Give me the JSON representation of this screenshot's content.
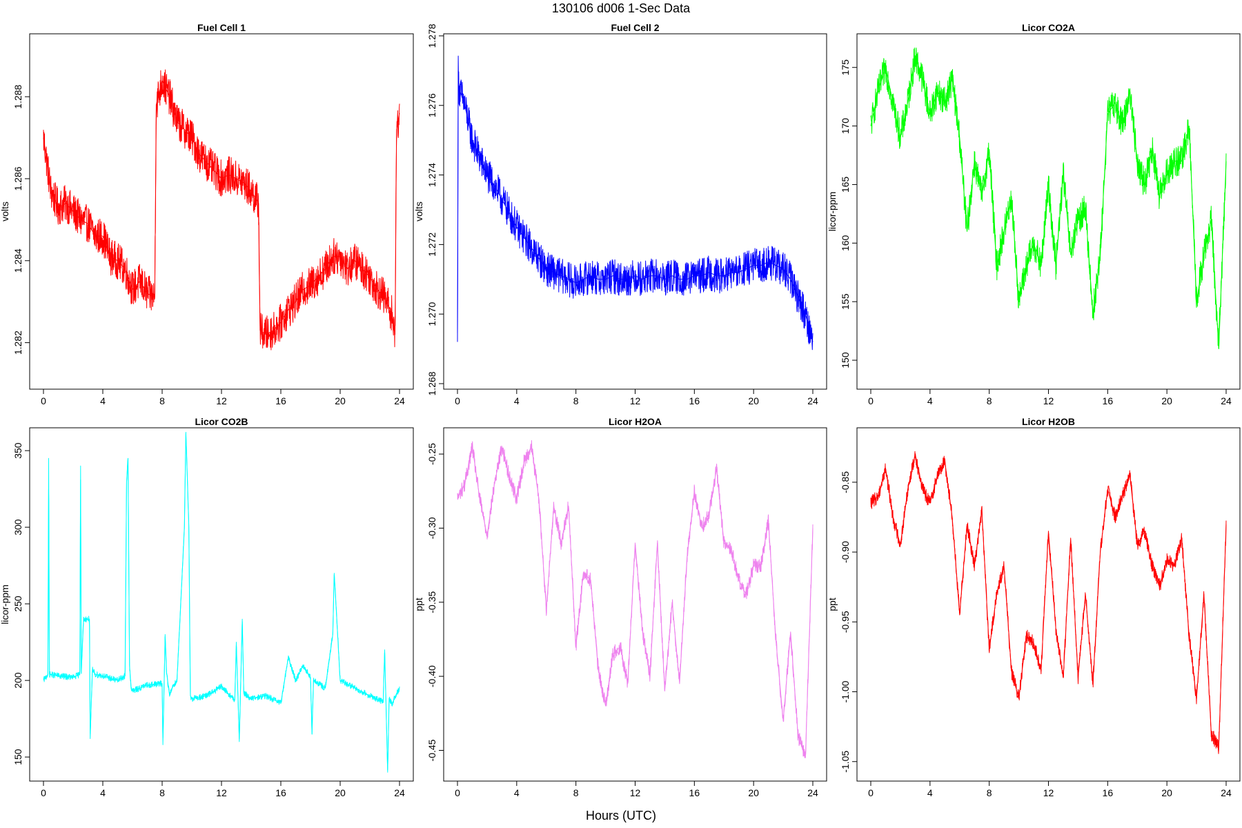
{
  "figure": {
    "title": "130106   d006   1-Sec Data",
    "xlabel": "Hours (UTC)"
  },
  "chart_data": [
    {
      "type": "line",
      "title": "Fuel Cell 1",
      "xlabel": "",
      "ylabel": "volts",
      "color": "#ff0000",
      "xlim": [
        0,
        24
      ],
      "ylim": [
        1.281,
        1.2894
      ],
      "xticks": [
        "0",
        "4",
        "8",
        "12",
        "16",
        "20",
        "24"
      ],
      "yticks": [
        "1.282",
        "1.284",
        "1.286",
        "1.288"
      ],
      "series": [
        {
          "x": [
            0,
            0.5,
            1,
            1.5,
            2,
            2.5,
            3,
            3.5,
            4,
            4.5,
            5,
            5.5,
            6,
            6.5,
            7,
            7.5,
            7.6,
            8,
            8.5,
            9,
            9.5,
            10,
            10.5,
            11,
            11.5,
            12,
            12.5,
            13,
            13.5,
            14,
            14.5,
            14.6,
            15,
            15.5,
            16,
            16.5,
            17,
            17.5,
            18,
            18.5,
            19,
            19.5,
            20,
            20.5,
            21,
            21.5,
            22,
            22.5,
            23,
            23.5,
            23.7,
            23.8,
            24
          ],
          "y": [
            1.287,
            1.2857,
            1.2853,
            1.2854,
            1.2852,
            1.285,
            1.2849,
            1.2846,
            1.2846,
            1.2841,
            1.284,
            1.2838,
            1.2833,
            1.2835,
            1.2832,
            1.2831,
            1.2878,
            1.2884,
            1.288,
            1.2874,
            1.2872,
            1.287,
            1.2866,
            1.2864,
            1.2862,
            1.286,
            1.2861,
            1.286,
            1.2859,
            1.2857,
            1.2854,
            1.2823,
            1.2822,
            1.2823,
            1.2825,
            1.2828,
            1.283,
            1.2833,
            1.2834,
            1.2836,
            1.2838,
            1.2841,
            1.2841,
            1.2838,
            1.284,
            1.2838,
            1.2836,
            1.2833,
            1.2831,
            1.2827,
            1.2822,
            1.2872,
            1.2876
          ],
          "noise": 0.00045
        }
      ]
    },
    {
      "type": "line",
      "title": "Fuel Cell 2",
      "xlabel": "",
      "ylabel": "volts",
      "color": "#0000ff",
      "xlim": [
        0,
        24
      ],
      "ylim": [
        1.268,
        1.2779
      ],
      "xticks": [
        "0",
        "4",
        "8",
        "12",
        "16",
        "20",
        "24"
      ],
      "yticks": [
        "1.268",
        "1.270",
        "1.272",
        "1.274",
        "1.276",
        "1.278"
      ],
      "series": [
        {
          "x": [
            0,
            0.05,
            0.1,
            0.5,
            1,
            1.5,
            2,
            2.5,
            3,
            3.5,
            4,
            4.5,
            5,
            5.5,
            6,
            6.5,
            7,
            7.5,
            8,
            8.5,
            9,
            9.5,
            10,
            10.5,
            11,
            11.5,
            12,
            12.5,
            13,
            13.5,
            14,
            14.5,
            15,
            15.5,
            16,
            16.5,
            17,
            17.5,
            18,
            18.5,
            19,
            19.5,
            20,
            20.5,
            21,
            21.5,
            22,
            22.5,
            23,
            23.5,
            24
          ],
          "y": [
            1.2692,
            1.277,
            1.2765,
            1.276,
            1.275,
            1.2745,
            1.274,
            1.2737,
            1.2733,
            1.2729,
            1.2725,
            1.2722,
            1.2719,
            1.2716,
            1.2713,
            1.2712,
            1.2711,
            1.271,
            1.2709,
            1.271,
            1.2711,
            1.271,
            1.271,
            1.2711,
            1.271,
            1.271,
            1.2711,
            1.271,
            1.2711,
            1.2711,
            1.271,
            1.2711,
            1.271,
            1.271,
            1.2711,
            1.2711,
            1.2712,
            1.2711,
            1.2711,
            1.2712,
            1.2712,
            1.2713,
            1.2714,
            1.2714,
            1.2715,
            1.2714,
            1.2713,
            1.271,
            1.2705,
            1.27,
            1.2692
          ],
          "noise": 0.0005
        }
      ]
    },
    {
      "type": "line",
      "title": "Licor CO2A",
      "xlabel": "",
      "ylabel": "licor-ppm",
      "color": "#00ff00",
      "xlim": [
        0,
        24
      ],
      "ylim": [
        148.0,
        177.4
      ],
      "xticks": [
        "0",
        "4",
        "8",
        "12",
        "16",
        "20",
        "24"
      ],
      "yticks": [
        "150",
        "155",
        "160",
        "165",
        "170",
        "175"
      ],
      "series": [
        {
          "x": [
            0,
            0.5,
            1,
            1.5,
            2,
            2.5,
            3,
            3.5,
            4,
            4.5,
            5,
            5.5,
            6,
            6.5,
            7,
            7.5,
            8,
            8.5,
            9,
            9.5,
            10,
            10.5,
            11,
            11.5,
            12,
            12.5,
            13,
            13.5,
            14,
            14.5,
            15,
            15.5,
            16,
            16.5,
            17,
            17.5,
            18,
            18.5,
            19,
            19.5,
            20,
            20.5,
            21,
            21.5,
            22,
            22.5,
            23,
            23.5,
            24
          ],
          "y": [
            170,
            173,
            175,
            172,
            169,
            172,
            176,
            174,
            171,
            173,
            172,
            174,
            169,
            161,
            167,
            164,
            168,
            158,
            161,
            164,
            155,
            158,
            160,
            158,
            165,
            158,
            166,
            159,
            162,
            163,
            154,
            159,
            171,
            172,
            170,
            173,
            167,
            165,
            168,
            164,
            166,
            167,
            167,
            170,
            155,
            159,
            162,
            151,
            167
          ],
          "noise": 1.3
        }
      ]
    },
    {
      "type": "line",
      "title": "Licor CO2B",
      "xlabel": "",
      "ylabel": "licor-ppm",
      "color": "#00ffff",
      "xlim": [
        0,
        24
      ],
      "ylim": [
        137.9,
        361.3
      ],
      "xticks": [
        "0",
        "4",
        "8",
        "12",
        "16",
        "20",
        "24"
      ],
      "yticks": [
        "150",
        "200",
        "250",
        "300",
        "350"
      ],
      "series": [
        {
          "x": [
            0,
            0.3,
            0.35,
            0.4,
            1,
            2,
            2.45,
            2.5,
            2.55,
            2.7,
            3.1,
            3.15,
            3.3,
            3.5,
            4,
            5,
            5.5,
            5.6,
            5.7,
            5.8,
            5.9,
            6,
            7,
            8,
            8.05,
            8.2,
            8.3,
            8.5,
            8.7,
            9,
            9.5,
            9.6,
            9.8,
            9.9,
            10,
            11,
            12,
            12.9,
            13,
            13.2,
            13.4,
            13.5,
            14,
            15,
            16,
            16.5,
            17,
            17.5,
            18,
            18.1,
            18.2,
            19,
            19.5,
            19.6,
            20,
            21,
            22,
            22.9,
            23.0,
            23.2,
            23.3,
            23.5,
            24
          ],
          "y": [
            200,
            204,
            345,
            204,
            203,
            202,
            204,
            340,
            205,
            240,
            240,
            162,
            207,
            204,
            203,
            200,
            203,
            330,
            345,
            210,
            196,
            193,
            197,
            198,
            158,
            230,
            205,
            190,
            196,
            200,
            300,
            362,
            300,
            190,
            188,
            190,
            196,
            187,
            225,
            160,
            240,
            192,
            188,
            190,
            185,
            215,
            200,
            210,
            202,
            165,
            200,
            195,
            230,
            270,
            200,
            195,
            190,
            186,
            220,
            140,
            188,
            185,
            195
          ],
          "noise": 2.0
        }
      ]
    },
    {
      "type": "line",
      "title": "Licor H2OA",
      "xlabel": "",
      "ylabel": "ppt",
      "color": "#ee82ee",
      "xlim": [
        0,
        24
      ],
      "ylim": [
        -0.467,
        -0.236
      ],
      "xticks": [
        "0",
        "4",
        "8",
        "12",
        "16",
        "20",
        "24"
      ],
      "yticks": [
        "-0.25",
        "-0.30",
        "-0.35",
        "-0.40",
        "-0.45"
      ],
      "series": [
        {
          "x": [
            0,
            0.5,
            1,
            1.5,
            2,
            2.5,
            3,
            3.5,
            4,
            4.5,
            5,
            5.5,
            6,
            6.5,
            7,
            7.5,
            8,
            8.5,
            9,
            9.5,
            10,
            10.5,
            11,
            11.5,
            12,
            12.5,
            13,
            13.5,
            14,
            14.5,
            15,
            15.5,
            16,
            16.5,
            17,
            17.5,
            18,
            18.5,
            19,
            19.5,
            20,
            20.5,
            21,
            21.5,
            22,
            22.5,
            23,
            23.5,
            24
          ],
          "y": [
            -0.28,
            -0.27,
            -0.245,
            -0.28,
            -0.305,
            -0.27,
            -0.245,
            -0.265,
            -0.28,
            -0.255,
            -0.245,
            -0.28,
            -0.355,
            -0.285,
            -0.31,
            -0.285,
            -0.38,
            -0.33,
            -0.335,
            -0.395,
            -0.42,
            -0.385,
            -0.38,
            -0.405,
            -0.31,
            -0.37,
            -0.4,
            -0.31,
            -0.41,
            -0.35,
            -0.405,
            -0.32,
            -0.275,
            -0.3,
            -0.29,
            -0.26,
            -0.31,
            -0.315,
            -0.335,
            -0.345,
            -0.325,
            -0.325,
            -0.295,
            -0.375,
            -0.43,
            -0.37,
            -0.44,
            -0.455,
            -0.3
          ],
          "noise": 0.005
        }
      ]
    },
    {
      "type": "line",
      "title": "Licor H2OB",
      "xlabel": "",
      "ylabel": "ppt",
      "color": "#ff0000",
      "xlim": [
        0,
        24
      ],
      "ylim": [
        -1.06,
        -0.815
      ],
      "xticks": [
        "0",
        "4",
        "8",
        "12",
        "16",
        "20",
        "24"
      ],
      "yticks": [
        "-0.85",
        "-0.90",
        "-0.95",
        "-1.00",
        "-1.05"
      ],
      "series": [
        {
          "x": [
            0,
            0.5,
            1,
            1.5,
            2,
            2.5,
            3,
            3.5,
            4,
            4.5,
            5,
            5.5,
            6,
            6.5,
            7,
            7.5,
            8,
            8.5,
            9,
            9.5,
            10,
            10.5,
            11,
            11.5,
            12,
            12.5,
            13,
            13.5,
            14,
            14.5,
            15,
            15.5,
            16,
            16.5,
            17,
            17.5,
            18,
            18.5,
            19,
            19.5,
            20,
            20.5,
            21,
            21.5,
            22,
            22.5,
            23,
            23.5,
            24
          ],
          "y": [
            -0.865,
            -0.86,
            -0.84,
            -0.875,
            -0.895,
            -0.855,
            -0.83,
            -0.855,
            -0.865,
            -0.845,
            -0.835,
            -0.875,
            -0.945,
            -0.88,
            -0.91,
            -0.87,
            -0.97,
            -0.93,
            -0.91,
            -0.985,
            -1.005,
            -0.96,
            -0.965,
            -0.985,
            -0.885,
            -0.955,
            -0.99,
            -0.89,
            -0.99,
            -0.93,
            -0.995,
            -0.9,
            -0.855,
            -0.875,
            -0.86,
            -0.845,
            -0.895,
            -0.885,
            -0.91,
            -0.925,
            -0.905,
            -0.91,
            -0.89,
            -0.96,
            -1.005,
            -0.93,
            -1.03,
            -1.04,
            -0.88
          ],
          "noise": 0.005
        }
      ]
    }
  ]
}
